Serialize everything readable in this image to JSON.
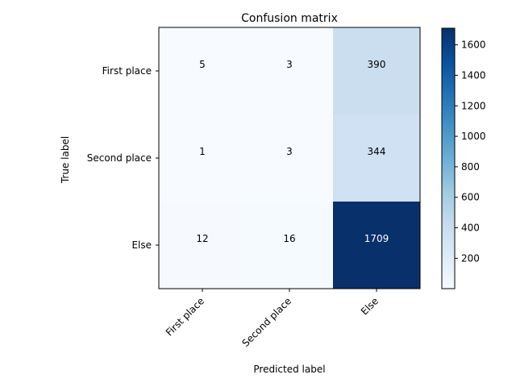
{
  "chart_data": {
    "type": "heatmap",
    "title": "Confusion matrix",
    "xlabel": "Predicted label",
    "ylabel": "True label",
    "x_categories": [
      "First place",
      "Second place",
      "Else"
    ],
    "y_categories": [
      "First place",
      "Second place",
      "Else"
    ],
    "values": [
      [
        5,
        3,
        390
      ],
      [
        1,
        3,
        344
      ],
      [
        12,
        16,
        1709
      ]
    ],
    "colormap": "Blues",
    "colorbar": {
      "range": [
        1,
        1709
      ],
      "ticks": [
        200,
        400,
        600,
        800,
        1000,
        1200,
        1400,
        1600
      ]
    }
  }
}
